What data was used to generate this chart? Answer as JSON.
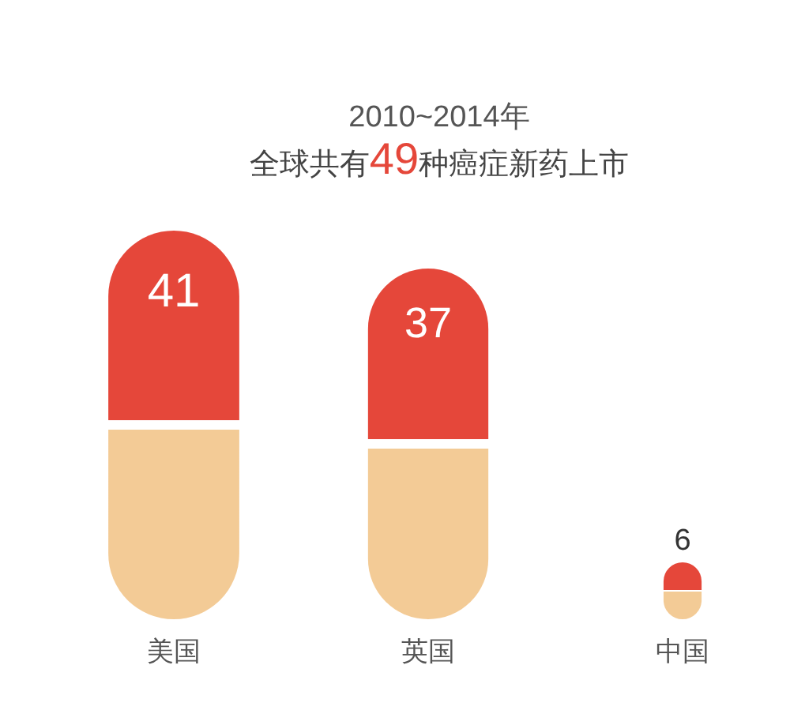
{
  "chart_data": {
    "type": "bar",
    "title": "2010~2014年",
    "subtitle": "全球共有**49**种癌症新药上市",
    "categories": [
      "美国",
      "英国",
      "中国"
    ],
    "values": [
      41,
      37,
      6
    ],
    "color": "#e5473a",
    "data_labels": true
  }
}
